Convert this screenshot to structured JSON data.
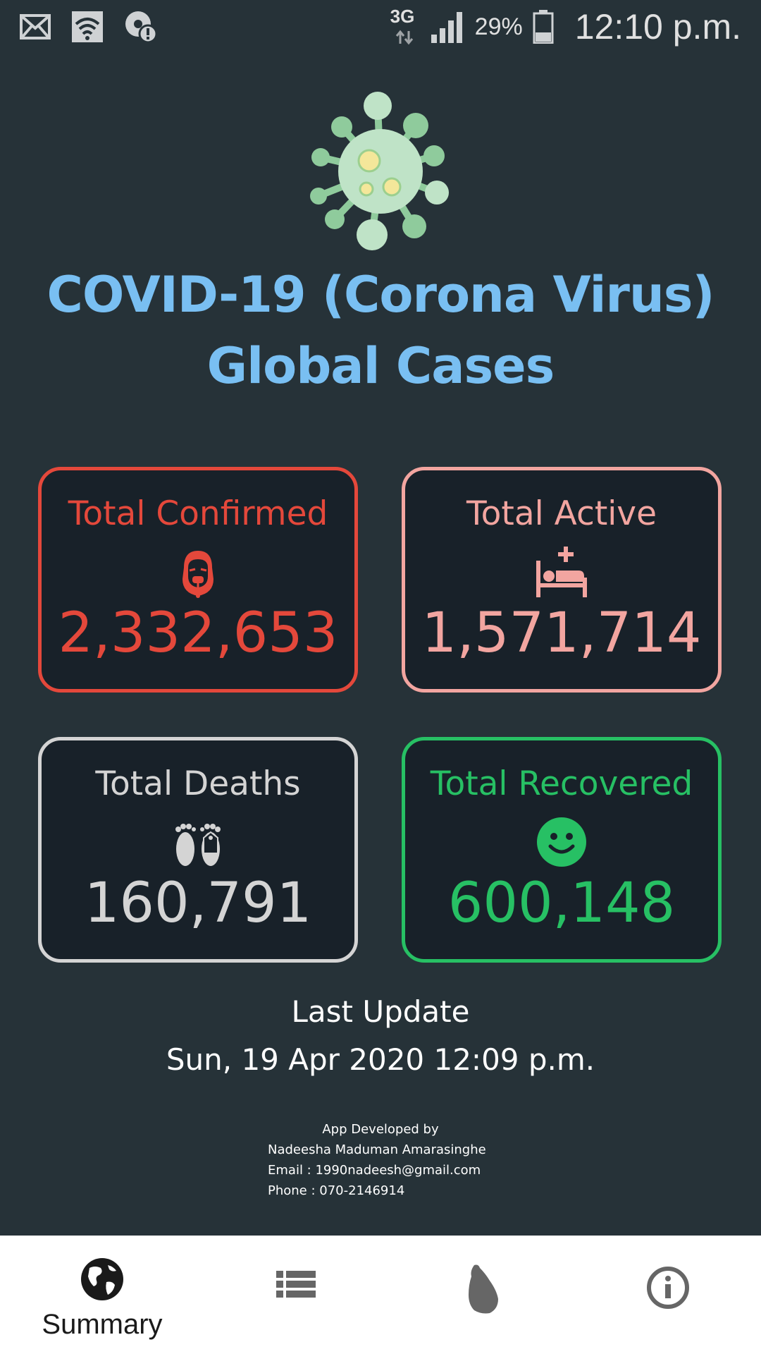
{
  "status_bar": {
    "network": "3G",
    "battery": "29%",
    "time": "12:10 p.m."
  },
  "header": {
    "title_line1": "COVID-19 (Corona Virus)",
    "title_line2": "Global Cases"
  },
  "cards": {
    "confirmed": {
      "label": "Total Confirmed",
      "value": "2,332,653",
      "color": "#e4483b",
      "icon": "patient-icon"
    },
    "active": {
      "label": "Total Active",
      "value": "1,571,714",
      "color": "#f2a5a0",
      "icon": "hospital-bed-icon"
    },
    "deaths": {
      "label": "Total Deaths",
      "value": "160,791",
      "color": "#d4d4d4",
      "icon": "feet-tag-icon"
    },
    "recovered": {
      "label": "Total Recovered",
      "value": "600,148",
      "color": "#27c064",
      "icon": "smiley-icon"
    }
  },
  "update": {
    "label": "Last Update",
    "time": "Sun, 19 Apr 2020 12:09 p.m."
  },
  "credits": {
    "heading": "App Developed by",
    "name": "Nadeesha Maduman Amarasinghe",
    "email": "Email  : 1990nadeesh@gmail.com",
    "phone": "Phone : 070-2146914"
  },
  "nav": {
    "summary_label": "Summary",
    "items": [
      "globe-icon",
      "list-icon",
      "sri-lanka-map-icon",
      "info-icon"
    ]
  }
}
